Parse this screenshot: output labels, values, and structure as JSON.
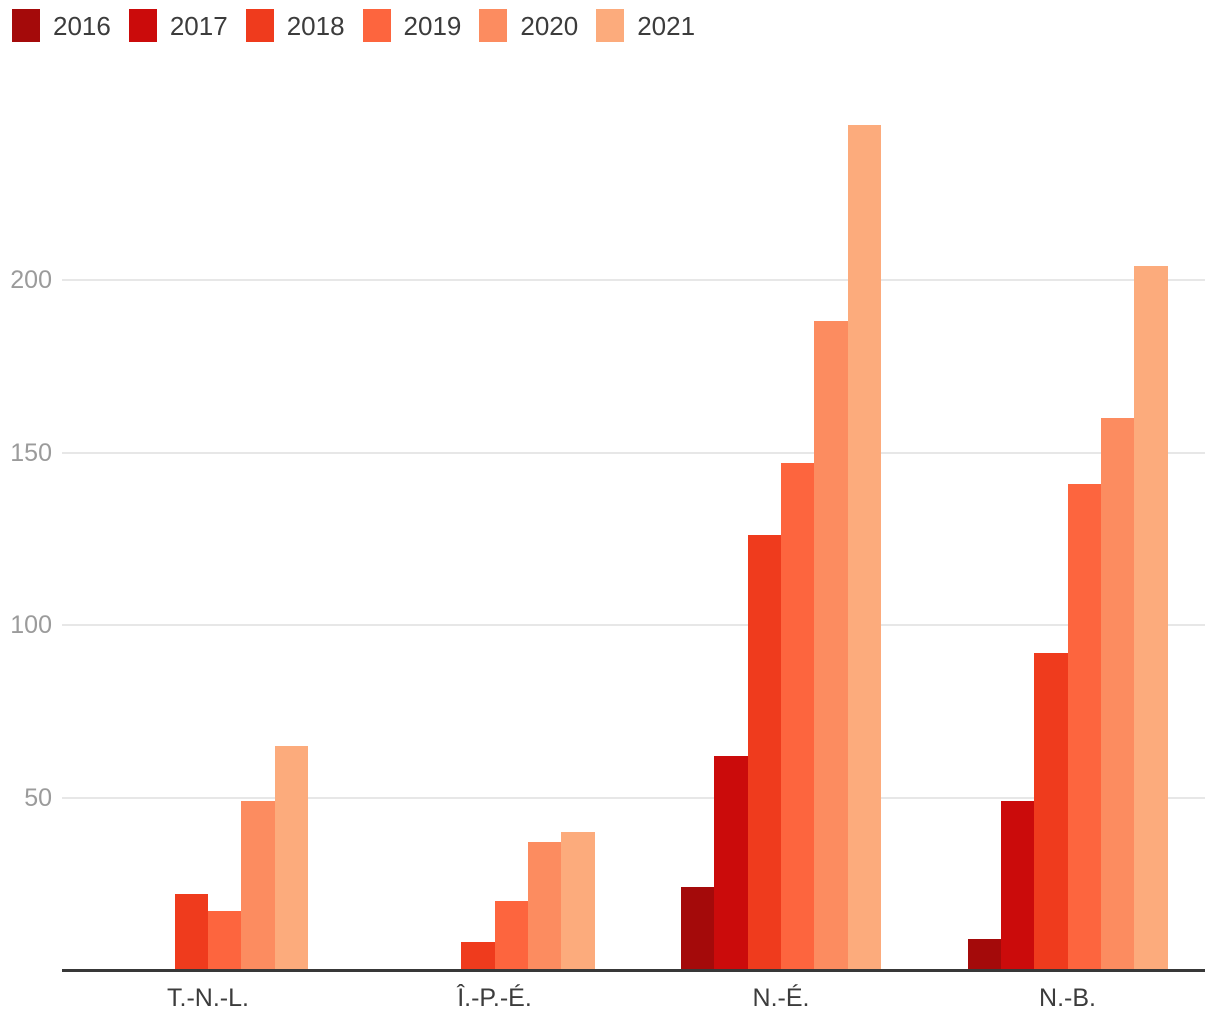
{
  "legend": {
    "items": [
      {
        "label": "2016",
        "color": "#a40a0a"
      },
      {
        "label": "2017",
        "color": "#cb0b0b"
      },
      {
        "label": "2018",
        "color": "#ef3b1d"
      },
      {
        "label": "2019",
        "color": "#fd653e"
      },
      {
        "label": "2020",
        "color": "#fc8c60"
      },
      {
        "label": "2021",
        "color": "#fcab7c"
      }
    ]
  },
  "chart_data": {
    "type": "bar",
    "title": "",
    "xlabel": "",
    "ylabel": "",
    "categories": [
      "T.-N.-L.",
      "Î.-P.-É.",
      "N.-É.",
      "N.-B."
    ],
    "series": [
      {
        "name": "2016",
        "color": "#a40a0a",
        "values": [
          0,
          0,
          24,
          9
        ]
      },
      {
        "name": "2017",
        "color": "#cb0b0b",
        "values": [
          0,
          0,
          62,
          49
        ]
      },
      {
        "name": "2018",
        "color": "#ef3b1d",
        "values": [
          22,
          8,
          126,
          92
        ]
      },
      {
        "name": "2019",
        "color": "#fd653e",
        "values": [
          17,
          20,
          147,
          141
        ]
      },
      {
        "name": "2020",
        "color": "#fc8c60",
        "values": [
          49,
          37,
          188,
          160
        ]
      },
      {
        "name": "2021",
        "color": "#fcab7c",
        "values": [
          65,
          40,
          245,
          204
        ]
      }
    ],
    "yticks": [
      50,
      100,
      150,
      200
    ],
    "ylim": [
      0,
      260
    ],
    "grid": true,
    "legend_position": "top-left"
  },
  "colors": {
    "background": "#ffffff",
    "axis": "#383838",
    "grid": "#e7e7e7",
    "tick_label": "#9b9b9b",
    "category_label": "#3c3c3c",
    "legend_label": "#3c3c3c"
  }
}
